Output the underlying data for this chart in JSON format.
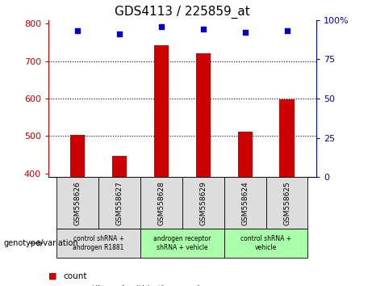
{
  "title": "GDS4113 / 225859_at",
  "samples": [
    "GSM558626",
    "GSM558627",
    "GSM558628",
    "GSM558629",
    "GSM558624",
    "GSM558625"
  ],
  "bar_values": [
    503,
    448,
    743,
    722,
    512,
    598
  ],
  "percentile_values": [
    93,
    91,
    96,
    94,
    92,
    93
  ],
  "bar_color": "#cc0000",
  "percentile_color": "#0000cc",
  "ymin": 390,
  "ymax": 810,
  "yticks_left": [
    400,
    500,
    600,
    700,
    800
  ],
  "yticks_right": [
    0,
    25,
    50,
    75,
    100
  ],
  "grid_values": [
    500,
    600,
    700
  ],
  "group_info": [
    {
      "label": "control shRNA +\nandrogen R1881",
      "start": 0,
      "end": 2,
      "color": "#dddddd"
    },
    {
      "label": "androgen receptor\nshRNA + vehicle",
      "start": 2,
      "end": 4,
      "color": "#aaffaa"
    },
    {
      "label": "control shRNA +\nvehicle",
      "start": 4,
      "end": 6,
      "color": "#aaffaa"
    }
  ],
  "sample_box_color": "#dddddd",
  "legend_count_color": "#cc0000",
  "legend_percentile_color": "#0000cc",
  "genotype_label": "genotype/variation",
  "bar_width": 0.35,
  "figsize": [
    4.61,
    3.54
  ],
  "dpi": 100
}
